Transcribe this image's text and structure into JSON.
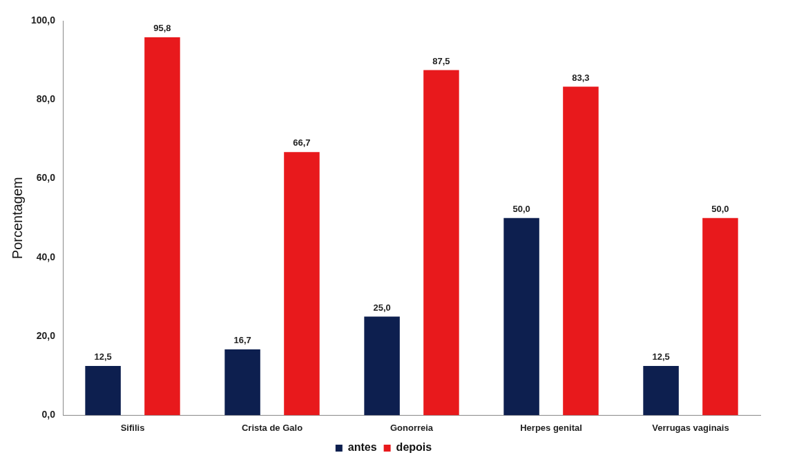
{
  "chart_data": {
    "type": "bar",
    "ylabel": "Porcentagem",
    "categories": [
      "Sifilis",
      "Crista de Galo",
      "Gonorreia",
      "Herpes genital",
      "Verrugas vaginais"
    ],
    "series": [
      {
        "name": "antes",
        "color": "#0d1f4f",
        "values": [
          12.5,
          16.7,
          25.0,
          50.0,
          12.5
        ],
        "value_labels": [
          "12,5",
          "16,7",
          "25,0",
          "50,0",
          "12,5"
        ]
      },
      {
        "name": "depois",
        "color": "#e8191c",
        "values": [
          95.8,
          66.7,
          87.5,
          83.3,
          50.0
        ],
        "value_labels": [
          "95,8",
          "66,7",
          "87,5",
          "83,3",
          "50,0"
        ]
      }
    ],
    "ylim": [
      0,
      100
    ],
    "yticks": [
      {
        "value": 0,
        "label": "0,0"
      },
      {
        "value": 20,
        "label": "20,0"
      },
      {
        "value": 40,
        "label": "40,0"
      },
      {
        "value": 60,
        "label": "60,0"
      },
      {
        "value": 80,
        "label": "80,0"
      },
      {
        "value": 100,
        "label": "100,0"
      }
    ],
    "grid": false,
    "legend": "bottom"
  }
}
